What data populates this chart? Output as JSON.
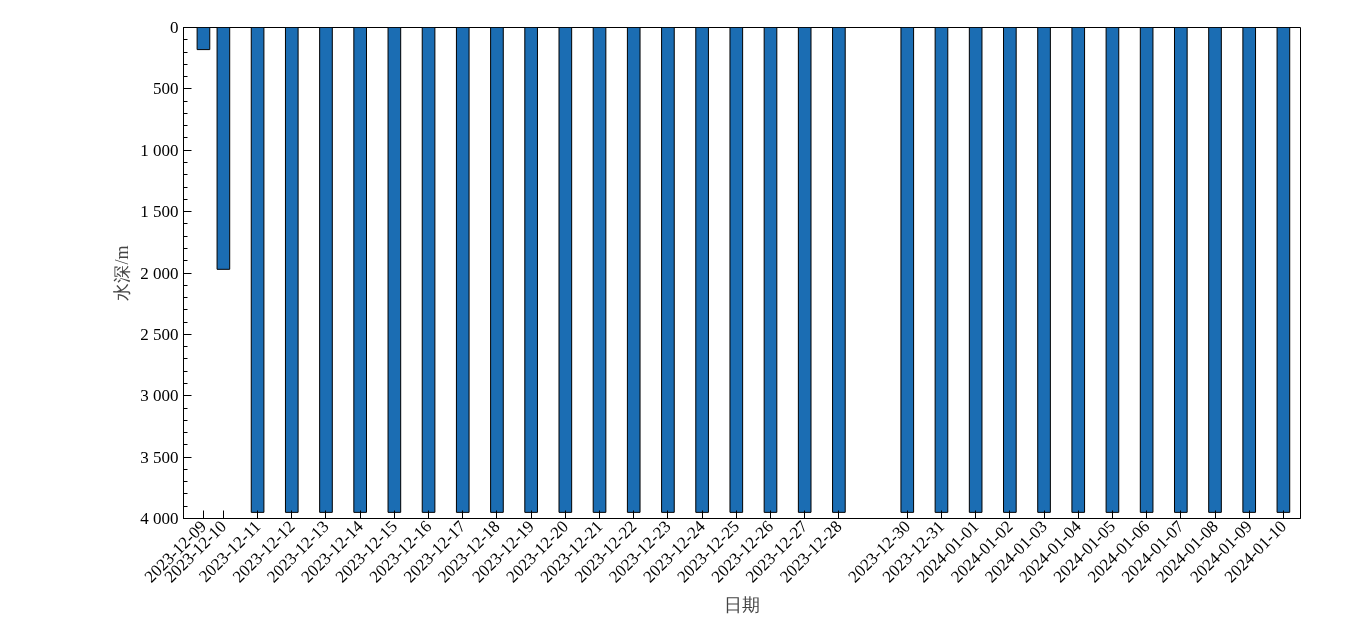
{
  "chart_data": {
    "type": "bar",
    "xlabel": "日期",
    "ylabel": "水深/m",
    "x": [
      "2023-12-09T10:00",
      "2023-12-10",
      "2023-12-11",
      "2023-12-12",
      "2023-12-13",
      "2023-12-14",
      "2023-12-15",
      "2023-12-16",
      "2023-12-17",
      "2023-12-18",
      "2023-12-19",
      "2023-12-20",
      "2023-12-21",
      "2023-12-22",
      "2023-12-23",
      "2023-12-24",
      "2023-12-25",
      "2023-12-26",
      "2023-12-27",
      "2023-12-28",
      "2023-12-30",
      "2023-12-31",
      "2024-01-01",
      "2024-01-02",
      "2024-01-03",
      "2024-01-04",
      "2024-01-05",
      "2024-01-06",
      "2024-01-07",
      "2024-01-08",
      "2024-01-09",
      "2024-01-10"
    ],
    "values": [
      180,
      1970,
      3950,
      3950,
      3950,
      3950,
      3950,
      3950,
      3950,
      3950,
      3950,
      3950,
      3950,
      3950,
      3950,
      3950,
      3950,
      3950,
      3950,
      3950,
      3950,
      3950,
      3950,
      3950,
      3950,
      3950,
      3950,
      3950,
      3950,
      3950,
      3950,
      3950
    ],
    "color": "#1b6db3",
    "xlim": [
      "2023-12-08T20:00",
      "2024-01-10T12:00"
    ],
    "xticks": [
      {
        "value": "2023-12-09T10:00",
        "label": "2023-12-09"
      },
      {
        "value": "2023-12-10",
        "label": "2023-12-10"
      },
      {
        "value": "2023-12-11",
        "label": "2023-12-11"
      },
      {
        "value": "2023-12-12",
        "label": "2023-12-12"
      },
      {
        "value": "2023-12-13",
        "label": "2023-12-13"
      },
      {
        "value": "2023-12-14",
        "label": "2023-12-14"
      },
      {
        "value": "2023-12-15",
        "label": "2023-12-15"
      },
      {
        "value": "2023-12-16",
        "label": "2023-12-16"
      },
      {
        "value": "2023-12-17",
        "label": "2023-12-17"
      },
      {
        "value": "2023-12-18",
        "label": "2023-12-18"
      },
      {
        "value": "2023-12-19",
        "label": "2023-12-19"
      },
      {
        "value": "2023-12-20",
        "label": "2023-12-20"
      },
      {
        "value": "2023-12-21",
        "label": "2023-12-21"
      },
      {
        "value": "2023-12-22",
        "label": "2023-12-22"
      },
      {
        "value": "2023-12-23",
        "label": "2023-12-23"
      },
      {
        "value": "2023-12-24",
        "label": "2023-12-24"
      },
      {
        "value": "2023-12-25",
        "label": "2023-12-25"
      },
      {
        "value": "2023-12-26",
        "label": "2023-12-26"
      },
      {
        "value": "2023-12-27",
        "label": "2023-12-27"
      },
      {
        "value": "2023-12-28",
        "label": "2023-12-28"
      },
      {
        "value": "2023-12-30",
        "label": "2023-12-30"
      },
      {
        "value": "2023-12-31",
        "label": "2023-12-31"
      },
      {
        "value": "2024-01-01",
        "label": "2024-01-01"
      },
      {
        "value": "2024-01-02",
        "label": "2024-01-02"
      },
      {
        "value": "2024-01-03",
        "label": "2024-01-03"
      },
      {
        "value": "2024-01-04",
        "label": "2024-01-04"
      },
      {
        "value": "2024-01-05",
        "label": "2024-01-05"
      },
      {
        "value": "2024-01-06",
        "label": "2024-01-06"
      },
      {
        "value": "2024-01-07",
        "label": "2024-01-07"
      },
      {
        "value": "2024-01-08",
        "label": "2024-01-08"
      },
      {
        "value": "2024-01-09",
        "label": "2024-01-09"
      },
      {
        "value": "2024-01-10",
        "label": "2024-01-10"
      }
    ],
    "ylim": [
      4000,
      0
    ],
    "yticks": [
      0,
      500,
      {
        "value": 1000,
        "label": "1 000"
      },
      {
        "value": 1500,
        "label": "1 500"
      },
      {
        "value": 2000,
        "label": "2 000"
      },
      {
        "value": 2500,
        "label": "2 500"
      },
      {
        "value": 3000,
        "label": "3 000"
      },
      {
        "value": 3500,
        "label": "3 500"
      },
      {
        "value": 4000,
        "label": "4 000"
      }
    ],
    "grid": false
  }
}
